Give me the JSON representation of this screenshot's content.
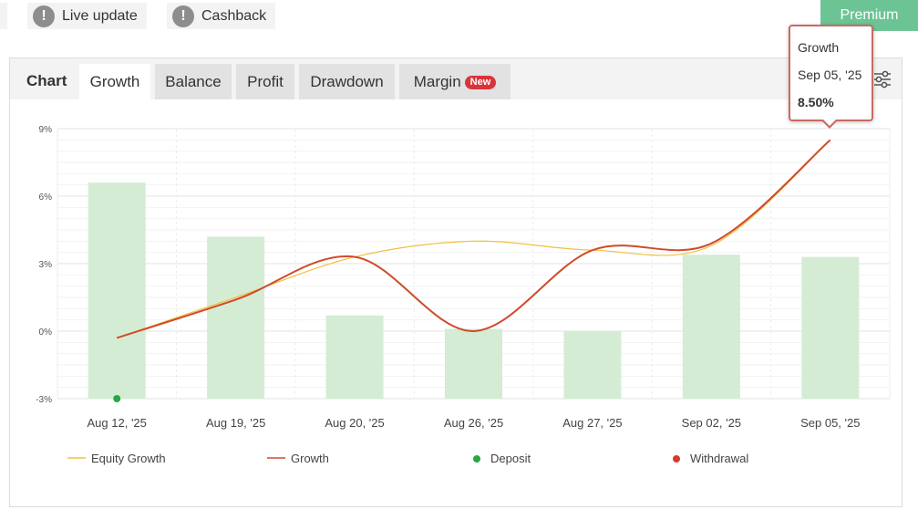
{
  "top_bar": {
    "live_update": {
      "label": "Live update",
      "icon": "exclamation-icon"
    },
    "cashback": {
      "label": "Cashback",
      "icon": "exclamation-icon"
    },
    "premium_label": "Premium"
  },
  "tabs": {
    "chart_label": "Chart",
    "items": [
      {
        "label": "Growth",
        "active": true
      },
      {
        "label": "Balance",
        "active": false
      },
      {
        "label": "Profit",
        "active": false
      },
      {
        "label": "Drawdown",
        "active": false
      },
      {
        "label": "Margin",
        "active": false,
        "badge": "New"
      }
    ],
    "settings_icon": "sliders-icon"
  },
  "tooltip": {
    "title": "Growth",
    "date": "Sep 05, '25",
    "value": "8.50%"
  },
  "colors": {
    "equity_growth": "#f0c040",
    "growth": "#cf4b2b",
    "deposit": "#27a845",
    "withdrawal": "#d93a2b",
    "bars": "#d4ecd4",
    "premium": "#6cc494"
  },
  "chart_data": {
    "type": "bar",
    "categories": [
      "Aug 12, '25",
      "Aug 19, '25",
      "Aug 20, '25",
      "Aug 26, '25",
      "Aug 27, '25",
      "Sep 02, '25",
      "Sep 05, '25"
    ],
    "y_ticks": [
      "9%",
      "6%",
      "3%",
      "0%",
      "-3%"
    ],
    "ylim": [
      -3,
      9
    ],
    "grid": true,
    "legend_position": "bottom",
    "series": [
      {
        "name": "Growth",
        "kind": "bar",
        "values": [
          6.6,
          4.2,
          0.7,
          0.1,
          0.0,
          3.4,
          3.3
        ]
      },
      {
        "name": "Equity Growth",
        "kind": "line",
        "values": [
          -0.3,
          1.5,
          3.3,
          4.0,
          3.6,
          3.8,
          8.5
        ]
      },
      {
        "name": "Growth",
        "kind": "line",
        "values": [
          -0.3,
          1.4,
          3.3,
          0.0,
          3.6,
          3.9,
          8.5
        ]
      },
      {
        "name": "Deposit",
        "kind": "marker",
        "points": [
          {
            "category": "Aug 12, '25",
            "value": -3.0
          }
        ]
      },
      {
        "name": "Withdrawal",
        "kind": "marker",
        "points": []
      }
    ],
    "legend": [
      {
        "label": "Equity Growth",
        "symbol": "line",
        "color": "#f0c040"
      },
      {
        "label": "Growth",
        "symbol": "line",
        "color": "#cf4b2b"
      },
      {
        "label": "Deposit",
        "symbol": "dot",
        "color": "#27a845"
      },
      {
        "label": "Withdrawal",
        "symbol": "dot",
        "color": "#d93a2b"
      }
    ]
  }
}
